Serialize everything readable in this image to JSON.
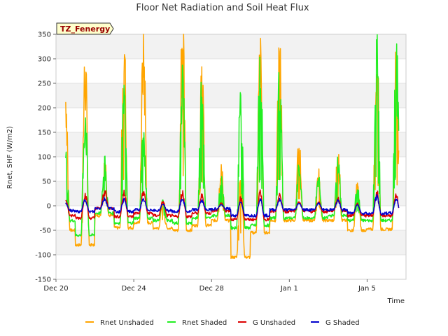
{
  "chart_data": {
    "type": "line",
    "title": "Floor Net Radiation and Soil Heat Flux",
    "xlabel": "Time",
    "ylabel": "Rnet, SHF (W/m2)",
    "badge": "TZ_Fenergy",
    "ylim": [
      -150,
      350
    ],
    "xlim": [
      "2023-12-20",
      "2024-01-07"
    ],
    "yticks": [
      -150,
      -100,
      -50,
      0,
      50,
      100,
      150,
      200,
      250,
      300,
      350
    ],
    "xticks": [
      {
        "label": "Dec 20",
        "x": "2023-12-20"
      },
      {
        "label": "Dec 24",
        "x": "2023-12-24"
      },
      {
        "label": "Dec 28",
        "x": "2023-12-28"
      },
      {
        "label": "Jan 1",
        "x": "2024-01-01"
      },
      {
        "label": "Jan 5",
        "x": "2024-01-05"
      }
    ],
    "grid": true,
    "legend_position": "bottom",
    "range": [
      "2023-12-20 12:00",
      "2024-01-06 15:00"
    ],
    "daily_peaks": {
      "dates": [
        "2023-12-20",
        "2023-12-21",
        "2023-12-22",
        "2023-12-23",
        "2023-12-24",
        "2023-12-25",
        "2023-12-26",
        "2023-12-27",
        "2023-12-28",
        "2023-12-29",
        "2023-12-30",
        "2023-12-31",
        "2024-01-01",
        "2024-01-02",
        "2024-01-03",
        "2024-01-04",
        "2024-01-05",
        "2024-01-06"
      ],
      "Rnet Unshaded": [
        213,
        258,
        90,
        288,
        298,
        12,
        340,
        258,
        70,
        60,
        278,
        283,
        120,
        65,
        95,
        40,
        285,
        270
      ],
      "Rnet Shaded": [
        88,
        178,
        80,
        193,
        138,
        10,
        253,
        225,
        55,
        200,
        270,
        240,
        70,
        55,
        80,
        35,
        283,
        282
      ],
      "G Unshaded": [
        12,
        22,
        28,
        25,
        26,
        8,
        26,
        20,
        6,
        15,
        25,
        20,
        8,
        8,
        15,
        5,
        27,
        20
      ],
      "G Shaded": [
        5,
        12,
        14,
        12,
        12,
        3,
        14,
        10,
        2,
        8,
        14,
        12,
        5,
        5,
        10,
        2,
        18,
        14
      ]
    },
    "daily_night": {
      "Rnet Unshaded": [
        -50,
        -80,
        -20,
        -45,
        -35,
        -45,
        -50,
        -40,
        -30,
        -105,
        -55,
        -30,
        -30,
        -30,
        -30,
        -50,
        -48,
        -48
      ],
      "Rnet Shaded": [
        -30,
        -60,
        -15,
        -35,
        -25,
        -30,
        -35,
        -25,
        -20,
        -45,
        -40,
        -25,
        -25,
        -25,
        -20,
        -30,
        -30,
        -30
      ],
      "G Unshaded": [
        -20,
        -25,
        -5,
        -22,
        -15,
        -20,
        -22,
        -15,
        -10,
        -28,
        -28,
        -12,
        -10,
        -12,
        -10,
        -20,
        -20,
        -20
      ],
      "G Shaded": [
        -10,
        -12,
        -5,
        -12,
        -8,
        -10,
        -12,
        -8,
        -6,
        -20,
        -20,
        -8,
        -8,
        -8,
        -8,
        -15,
        -16,
        -15
      ]
    },
    "series": [
      {
        "name": "Rnet Unshaded",
        "color": "#ffa500"
      },
      {
        "name": "Rnet Shaded",
        "color": "#22ee22"
      },
      {
        "name": "G Unshaded",
        "color": "#dd0000"
      },
      {
        "name": "G Shaded",
        "color": "#0000cc"
      }
    ]
  }
}
